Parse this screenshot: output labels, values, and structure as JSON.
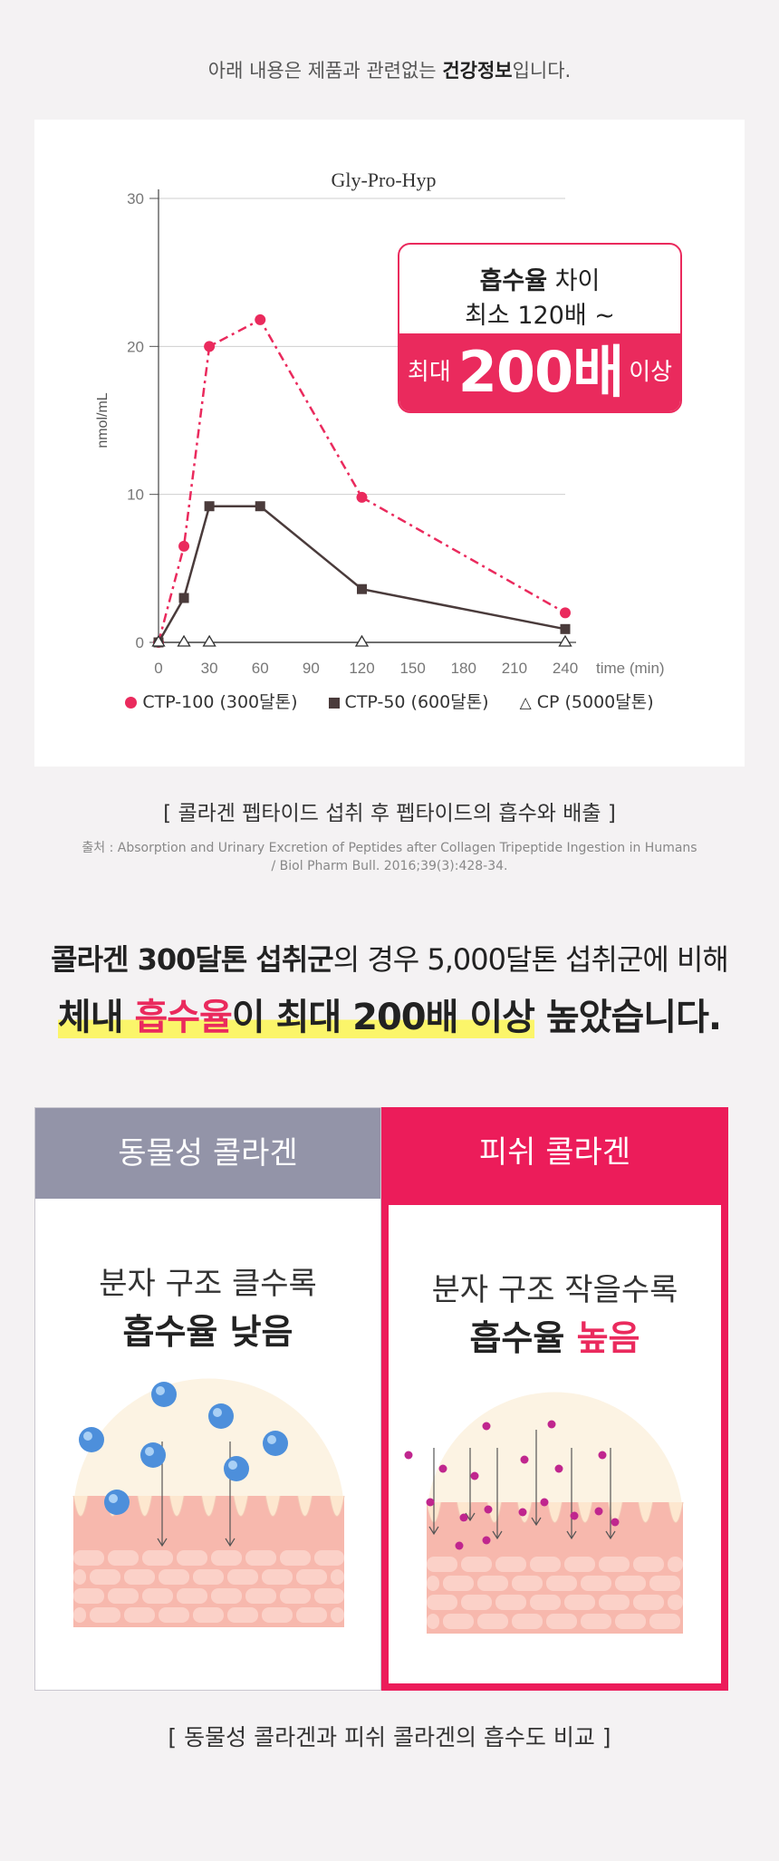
{
  "notice": {
    "before": "아래 내용은 제품과 관련없는 ",
    "bold": "건강정보",
    "after": "입니다."
  },
  "chart_data": {
    "type": "line",
    "title": "Gly-Pro-Hyp",
    "xlabel": "time (min)",
    "ylabel": "nmol/mL",
    "xlim": [
      0,
      240
    ],
    "ylim": [
      0,
      30
    ],
    "x_ticks": [
      0,
      30,
      60,
      90,
      120,
      150,
      180,
      210,
      240
    ],
    "y_ticks": [
      0,
      10,
      20,
      30
    ],
    "grid": "horizontal",
    "series": [
      {
        "name": "CTP-100 (300달톤)",
        "marker": "circle",
        "color": "#ea2a5d",
        "x": [
          0,
          15,
          30,
          60,
          120,
          240
        ],
        "y": [
          0,
          6.5,
          20,
          21.8,
          9.8,
          2
        ]
      },
      {
        "name": "CTP-50 (600달톤)",
        "marker": "square",
        "color": "#4a3b3b",
        "x": [
          0,
          15,
          30,
          60,
          120,
          240
        ],
        "y": [
          0,
          3,
          9.2,
          9.2,
          3.6,
          0.9
        ]
      },
      {
        "name": "CP (5000달톤)",
        "marker": "triangle",
        "color": "#333333",
        "x": [
          0,
          15,
          30,
          120,
          240
        ],
        "y": [
          0,
          0,
          0,
          0,
          0
        ]
      }
    ]
  },
  "callout": {
    "line1_bold": "흡수율",
    "line1_rest": " 차이",
    "line2": "최소 120배 ~",
    "prefix": "최대",
    "big": "200배",
    "suffix": "이상"
  },
  "caption": "[ 콜라겐 펩타이드 섭취 후 펩타이드의 흡수와 배출 ]",
  "source_line1": "출처 : Absorption and Urinary Excretion of Peptides after Collagen Tripeptide Ingestion in Humans",
  "source_line2": "/ Biol Pharm Bull. 2016;39(3):428-34.",
  "headline1": {
    "bold": "콜라겐 300달톤 섭취군",
    "rest": "의 경우 5,000달톤 섭취군에 비해"
  },
  "headline2": {
    "hl1": "체내 ",
    "hl_pink": "흡수율",
    "hl2": "이 최대 200배 이상",
    "rest": " 높았습니다."
  },
  "panels": {
    "animal": {
      "title": "동물성 콜라겐",
      "line1": "분자 구조  클수록",
      "line2": "흡수율 낮음"
    },
    "fish": {
      "title": "피쉬 콜라겐",
      "line1": "분자 구조 작을수록",
      "line2_a": "흡수율 ",
      "line2_b": "높음"
    }
  },
  "bottom_caption": "[ 동물성 콜라겐과 피쉬 콜라겐의 흡수도 비교 ]"
}
